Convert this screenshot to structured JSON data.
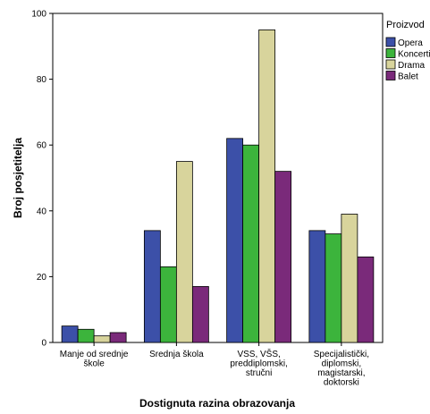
{
  "chart_data": {
    "type": "bar",
    "categories": [
      [
        "Manje od srednje",
        "škole"
      ],
      [
        "Srednja škola"
      ],
      [
        "VSS, VŠS,",
        "preddiplomski,",
        "stručni"
      ],
      [
        "Specijalistički,",
        "diplomski,",
        "magistarski,",
        "doktorski"
      ]
    ],
    "series": [
      {
        "name": "Opera",
        "color": "#3c50a8",
        "values": [
          5,
          34,
          62,
          34
        ]
      },
      {
        "name": "Koncerti",
        "color": "#3cb43c",
        "values": [
          4,
          23,
          60,
          33
        ]
      },
      {
        "name": "Drama",
        "color": "#d8d49c",
        "values": [
          2,
          55,
          95,
          39
        ]
      },
      {
        "name": "Balet",
        "color": "#7a2a7a",
        "values": [
          3,
          17,
          52,
          26
        ]
      }
    ],
    "xlabel": "Dostignuta razina obrazovanja",
    "ylabel": "Broj posjetitelja",
    "legend_title": "Proizvod",
    "legend_position": "top-right",
    "ylim": [
      0,
      100
    ],
    "yticks": [
      0,
      20,
      40,
      60,
      80,
      100
    ],
    "grid": false
  }
}
